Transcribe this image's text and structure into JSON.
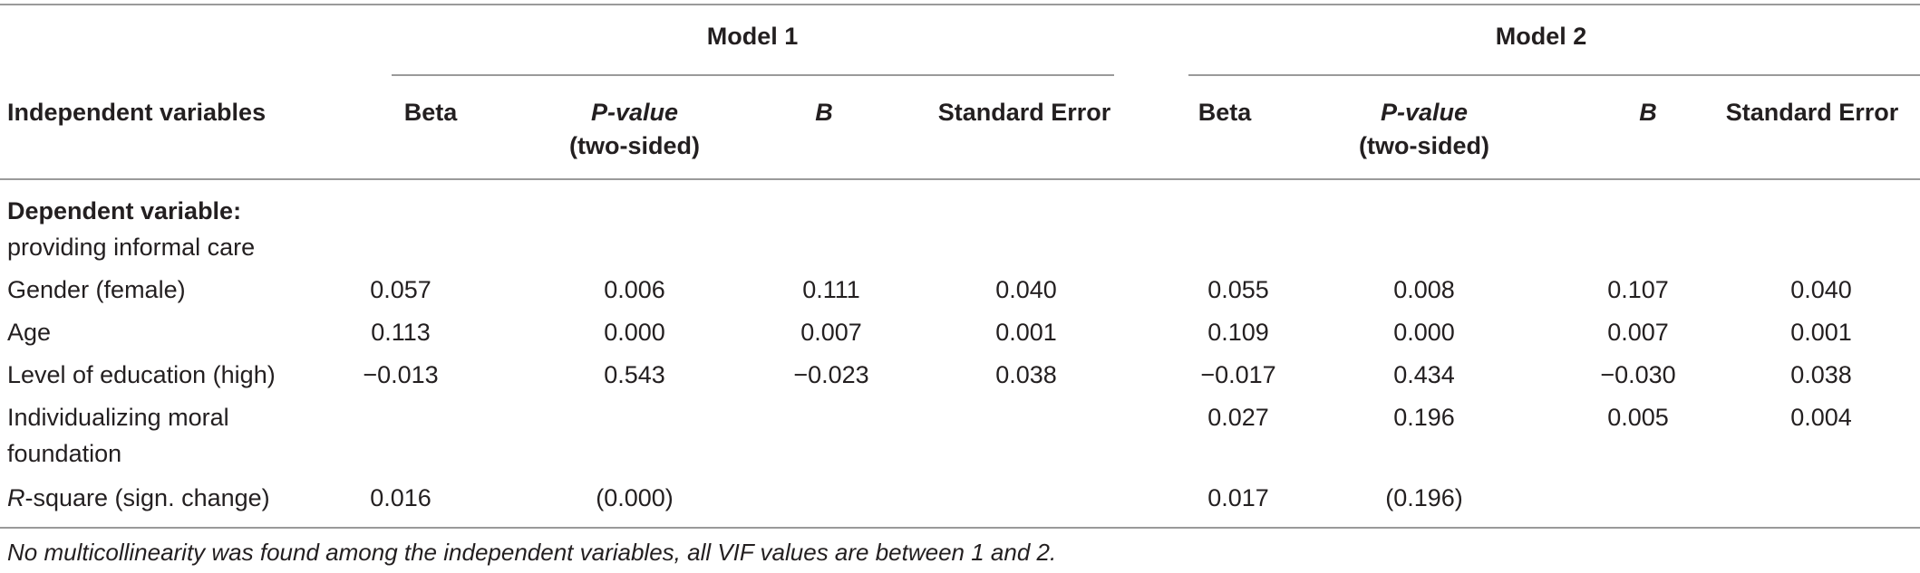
{
  "table": {
    "group_headers": [
      "Model 1",
      "Model 2"
    ],
    "stub_header": "Independent variables",
    "columns": [
      {
        "label": "Beta",
        "italic": false
      },
      {
        "label": "P-value",
        "sub": "(two-sided)",
        "italic": true
      },
      {
        "label": "B",
        "italic": true
      },
      {
        "label": "Standard Error",
        "italic": false
      }
    ],
    "dependent_label_bold": "Dependent variable:",
    "dependent_label": "providing informal care",
    "rows": [
      {
        "label": "Gender (female)",
        "m1": [
          "0.057",
          "0.006",
          "0.111",
          "0.040"
        ],
        "m2": [
          "0.055",
          "0.008",
          "0.107",
          "0.040"
        ]
      },
      {
        "label": "Age",
        "m1": [
          "0.113",
          "0.000",
          "0.007",
          "0.001"
        ],
        "m2": [
          "0.109",
          "0.000",
          "0.007",
          "0.001"
        ]
      },
      {
        "label": "Level of education (high)",
        "m1": [
          "−0.013",
          "0.543",
          "−0.023",
          "0.038"
        ],
        "m2": [
          "−0.017",
          "0.434",
          "−0.030",
          "0.038"
        ]
      },
      {
        "label_line1": "Individualizing moral",
        "label_line2": "foundation",
        "m1": [
          "",
          "",
          "",
          ""
        ],
        "m2": [
          "0.027",
          "0.196",
          "0.005",
          "0.004"
        ]
      },
      {
        "label_italic_part": "R",
        "label_rest": "-square (sign. change)",
        "m1": [
          "0.016",
          "(0.000)",
          "",
          ""
        ],
        "m2": [
          "0.017",
          "(0.196)",
          "",
          ""
        ]
      }
    ],
    "footnote": "No multicollinearity was found among the independent variables, all VIF values are between 1 and 2."
  }
}
